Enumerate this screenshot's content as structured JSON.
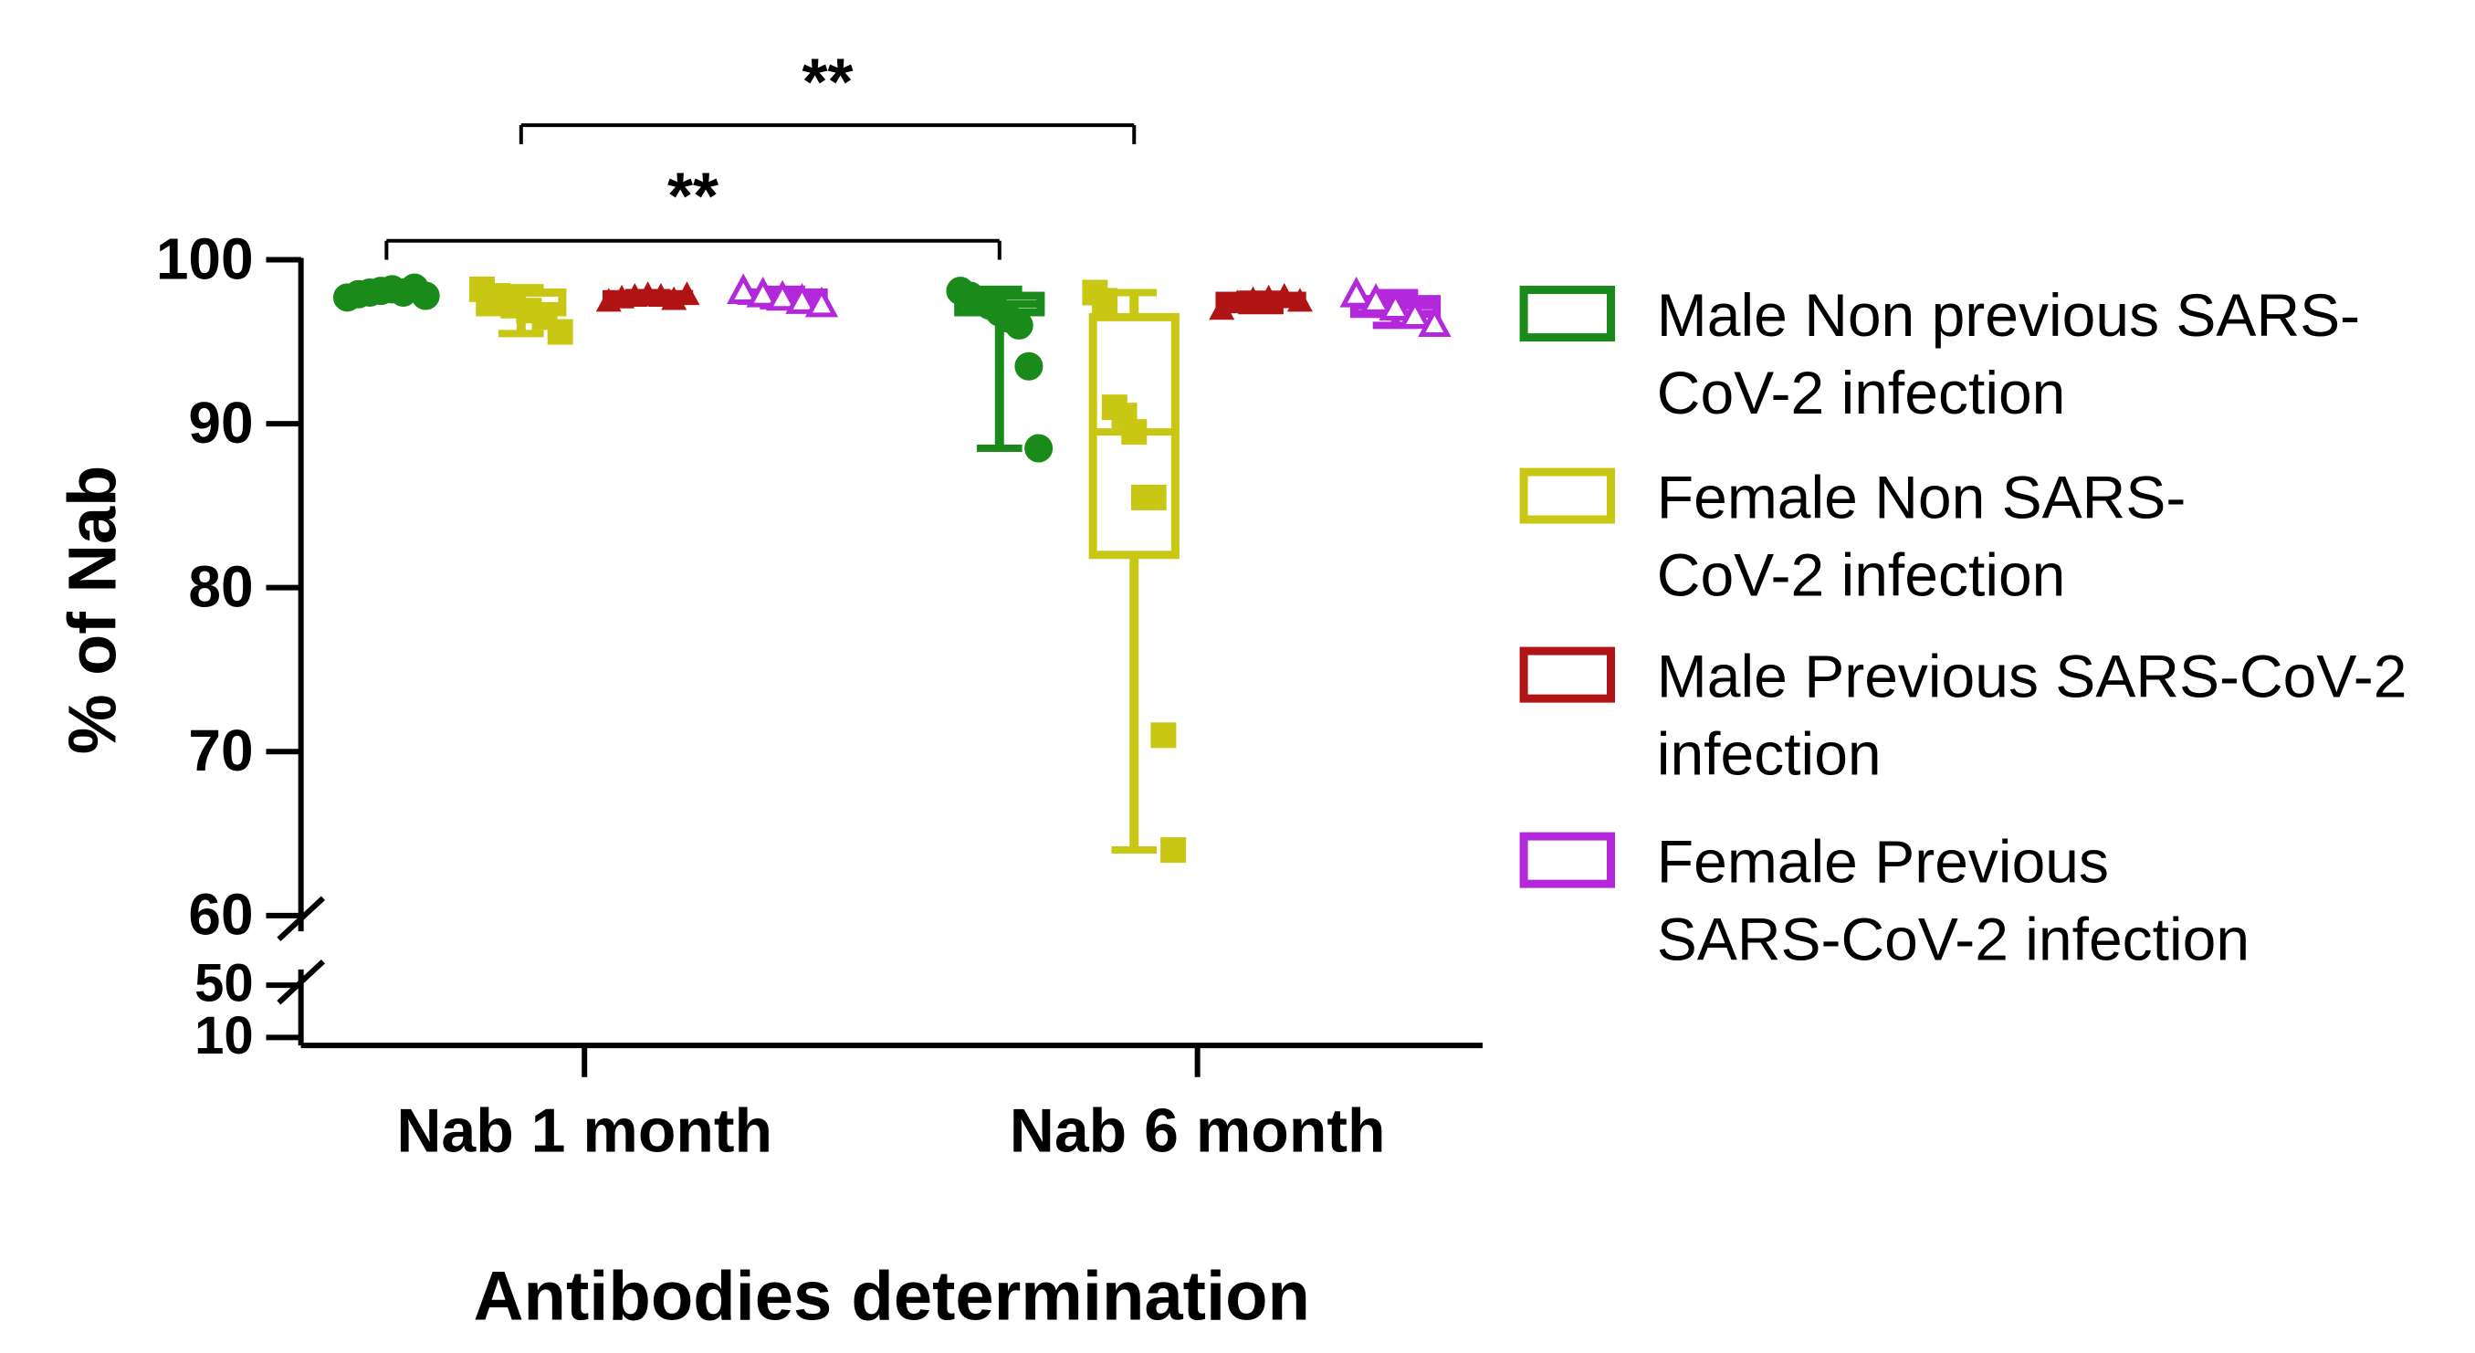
{
  "chart_data": {
    "type": "box",
    "title": "",
    "xlabel": "Antibodies determination",
    "ylabel": "% of Nab",
    "categories": [
      "Nab 1 month",
      "Nab 6 month"
    ],
    "y_ticks": [
      "10",
      "50",
      "60",
      "70",
      "80",
      "90",
      "100"
    ],
    "y_axis_break": "between 50 and 60 (segments 10-50 and 60-100)",
    "series": [
      {
        "name": "Male Non previous SARS-CoV-2 infection",
        "legend_lines": [
          "Male Non previous SARS-",
          "CoV-2 infection"
        ],
        "color": "#1a8a1a",
        "marker": "circle",
        "boxes": [
          {
            "category": "Nab 1 month",
            "min": 97.6,
            "q1": 97.8,
            "median": 98.0,
            "q3": 98.2,
            "max": 98.4,
            "points": [
              97.7,
              97.9,
              98.0,
              98.1,
              98.2,
              98.0,
              98.3,
              97.8
            ]
          },
          {
            "category": "Nab 6 month",
            "min": 88.5,
            "q1": 96.8,
            "median": 97.3,
            "q3": 97.8,
            "max": 98.2,
            "points": [
              98.1,
              97.8,
              97.5,
              97.2,
              96.8,
              96.4,
              96.0,
              93.5,
              88.5
            ]
          }
        ]
      },
      {
        "name": "Female Non SARS-CoV-2 infection",
        "legend_lines": [
          "Female Non SARS-",
          "CoV-2 infection"
        ],
        "color": "#c8c814",
        "marker": "square",
        "boxes": [
          {
            "category": "Nab 1 month",
            "min": 95.5,
            "q1": 96.8,
            "median": 97.2,
            "q3": 98.0,
            "max": 98.3,
            "points": [
              98.2,
              97.8,
              97.2,
              96.9,
              96.5,
              95.6
            ]
          },
          {
            "category": "Nab 6 month",
            "min": 64.0,
            "q1": 82.0,
            "median": 89.5,
            "q3": 96.5,
            "max": 98.0,
            "points": [
              98.0,
              97.5,
              91.0,
              90.5,
              89.5,
              85.5,
              85.5,
              71.0,
              64.0
            ]
          }
        ]
      },
      {
        "name": "Male Previous SARS-CoV-2 infection",
        "legend_lines": [
          "Male Previous SARS-CoV-2",
          "infection"
        ],
        "color": "#b01414",
        "marker": "triangle",
        "boxes": [
          {
            "category": "Nab 1 month",
            "min": 97.4,
            "q1": 97.6,
            "median": 97.8,
            "q3": 97.9,
            "max": 98.0,
            "points": [
              97.5,
              97.7,
              97.8,
              97.9,
              97.8,
              97.6,
              97.9
            ]
          },
          {
            "category": "Nab 6 month",
            "min": 96.9,
            "q1": 97.3,
            "median": 97.6,
            "q3": 97.8,
            "max": 97.9,
            "points": [
              97.0,
              97.4,
              97.6,
              97.7,
              97.8,
              97.5
            ]
          }
        ]
      },
      {
        "name": "Female Previous SARS-CoV-2 infection",
        "legend_lines": [
          "Female Previous",
          "SARS-CoV-2 infection"
        ],
        "color": "#b428dc",
        "marker": "triangle-open",
        "boxes": [
          {
            "category": "Nab 1 month",
            "min": 97.2,
            "q1": 97.5,
            "median": 97.8,
            "q3": 98.0,
            "max": 98.2,
            "points": [
              98.1,
              97.9,
              97.7,
              97.5,
              97.3
            ]
          },
          {
            "category": "Nab 6 month",
            "min": 96.0,
            "q1": 96.7,
            "median": 97.2,
            "q3": 97.6,
            "max": 98.0,
            "points": [
              97.9,
              97.5,
              97.1,
              96.6,
              96.1
            ]
          }
        ]
      }
    ],
    "annotations": [
      {
        "text": "**",
        "from": "Male Non previous SARS-CoV-2 infection / Nab 1 month",
        "to": "Male Non previous SARS-CoV-2 infection / Nab 6 month"
      },
      {
        "text": "**",
        "from": "Female Non SARS-CoV-2 infection / Nab 1 month",
        "to": "Female Non SARS-CoV-2 infection / Nab 6 month"
      }
    ]
  }
}
